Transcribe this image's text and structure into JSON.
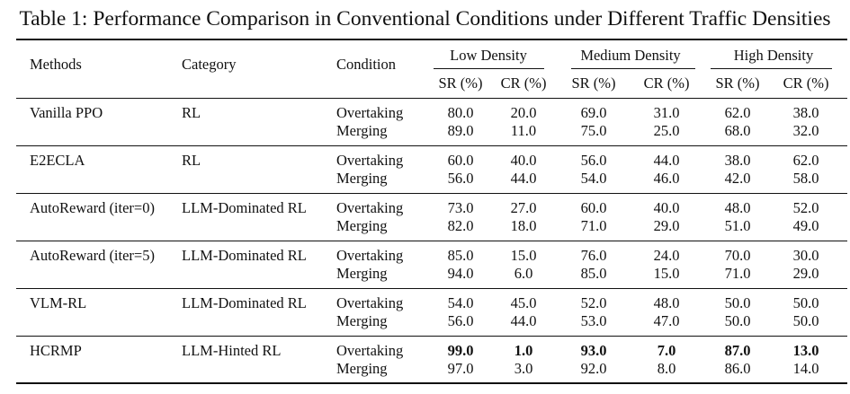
{
  "caption": "Table 1: Performance Comparison in Conventional Conditions under Different Traffic Densities",
  "headers": {
    "methods": "Methods",
    "category": "Category",
    "condition": "Condition",
    "densities": [
      "Low Density",
      "Medium Density",
      "High Density"
    ],
    "metrics": [
      "SR (%)",
      "CR (%)",
      "SR (%)",
      "CR (%)",
      "SR (%)",
      "CR (%)"
    ]
  },
  "rows": [
    {
      "method": "Vanilla PPO",
      "category": "RL",
      "conditions": [
        {
          "name": "Overtaking",
          "values": [
            "80.0",
            "20.0",
            "69.0",
            "31.0",
            "62.0",
            "38.0"
          ]
        },
        {
          "name": "Merging",
          "values": [
            "89.0",
            "11.0",
            "75.0",
            "25.0",
            "68.0",
            "32.0"
          ]
        }
      ]
    },
    {
      "method": "E2ECLA",
      "category": "RL",
      "conditions": [
        {
          "name": "Overtaking",
          "values": [
            "60.0",
            "40.0",
            "56.0",
            "44.0",
            "38.0",
            "62.0"
          ]
        },
        {
          "name": "Merging",
          "values": [
            "56.0",
            "44.0",
            "54.0",
            "46.0",
            "42.0",
            "58.0"
          ]
        }
      ]
    },
    {
      "method": "AutoReward (iter=0)",
      "category": "LLM-Dominated RL",
      "conditions": [
        {
          "name": "Overtaking",
          "values": [
            "73.0",
            "27.0",
            "60.0",
            "40.0",
            "48.0",
            "52.0"
          ]
        },
        {
          "name": "Merging",
          "values": [
            "82.0",
            "18.0",
            "71.0",
            "29.0",
            "51.0",
            "49.0"
          ]
        }
      ]
    },
    {
      "method": "AutoReward (iter=5)",
      "category": "LLM-Dominated RL",
      "conditions": [
        {
          "name": "Overtaking",
          "values": [
            "85.0",
            "15.0",
            "76.0",
            "24.0",
            "70.0",
            "30.0"
          ]
        },
        {
          "name": "Merging",
          "values": [
            "94.0",
            "6.0",
            "85.0",
            "15.0",
            "71.0",
            "29.0"
          ]
        }
      ]
    },
    {
      "method": "VLM-RL",
      "category": "LLM-Dominated RL",
      "conditions": [
        {
          "name": "Overtaking",
          "values": [
            "54.0",
            "45.0",
            "52.0",
            "48.0",
            "50.0",
            "50.0"
          ]
        },
        {
          "name": "Merging",
          "values": [
            "56.0",
            "44.0",
            "53.0",
            "47.0",
            "50.0",
            "50.0"
          ]
        }
      ]
    },
    {
      "method": "HCRMP",
      "category": "LLM-Hinted RL",
      "conditions": [
        {
          "name": "Overtaking",
          "values": [
            "99.0",
            "1.0",
            "93.0",
            "7.0",
            "87.0",
            "13.0"
          ],
          "bold": true
        },
        {
          "name": "Merging",
          "values": [
            "97.0",
            "3.0",
            "92.0",
            "8.0",
            "86.0",
            "14.0"
          ]
        }
      ]
    }
  ]
}
